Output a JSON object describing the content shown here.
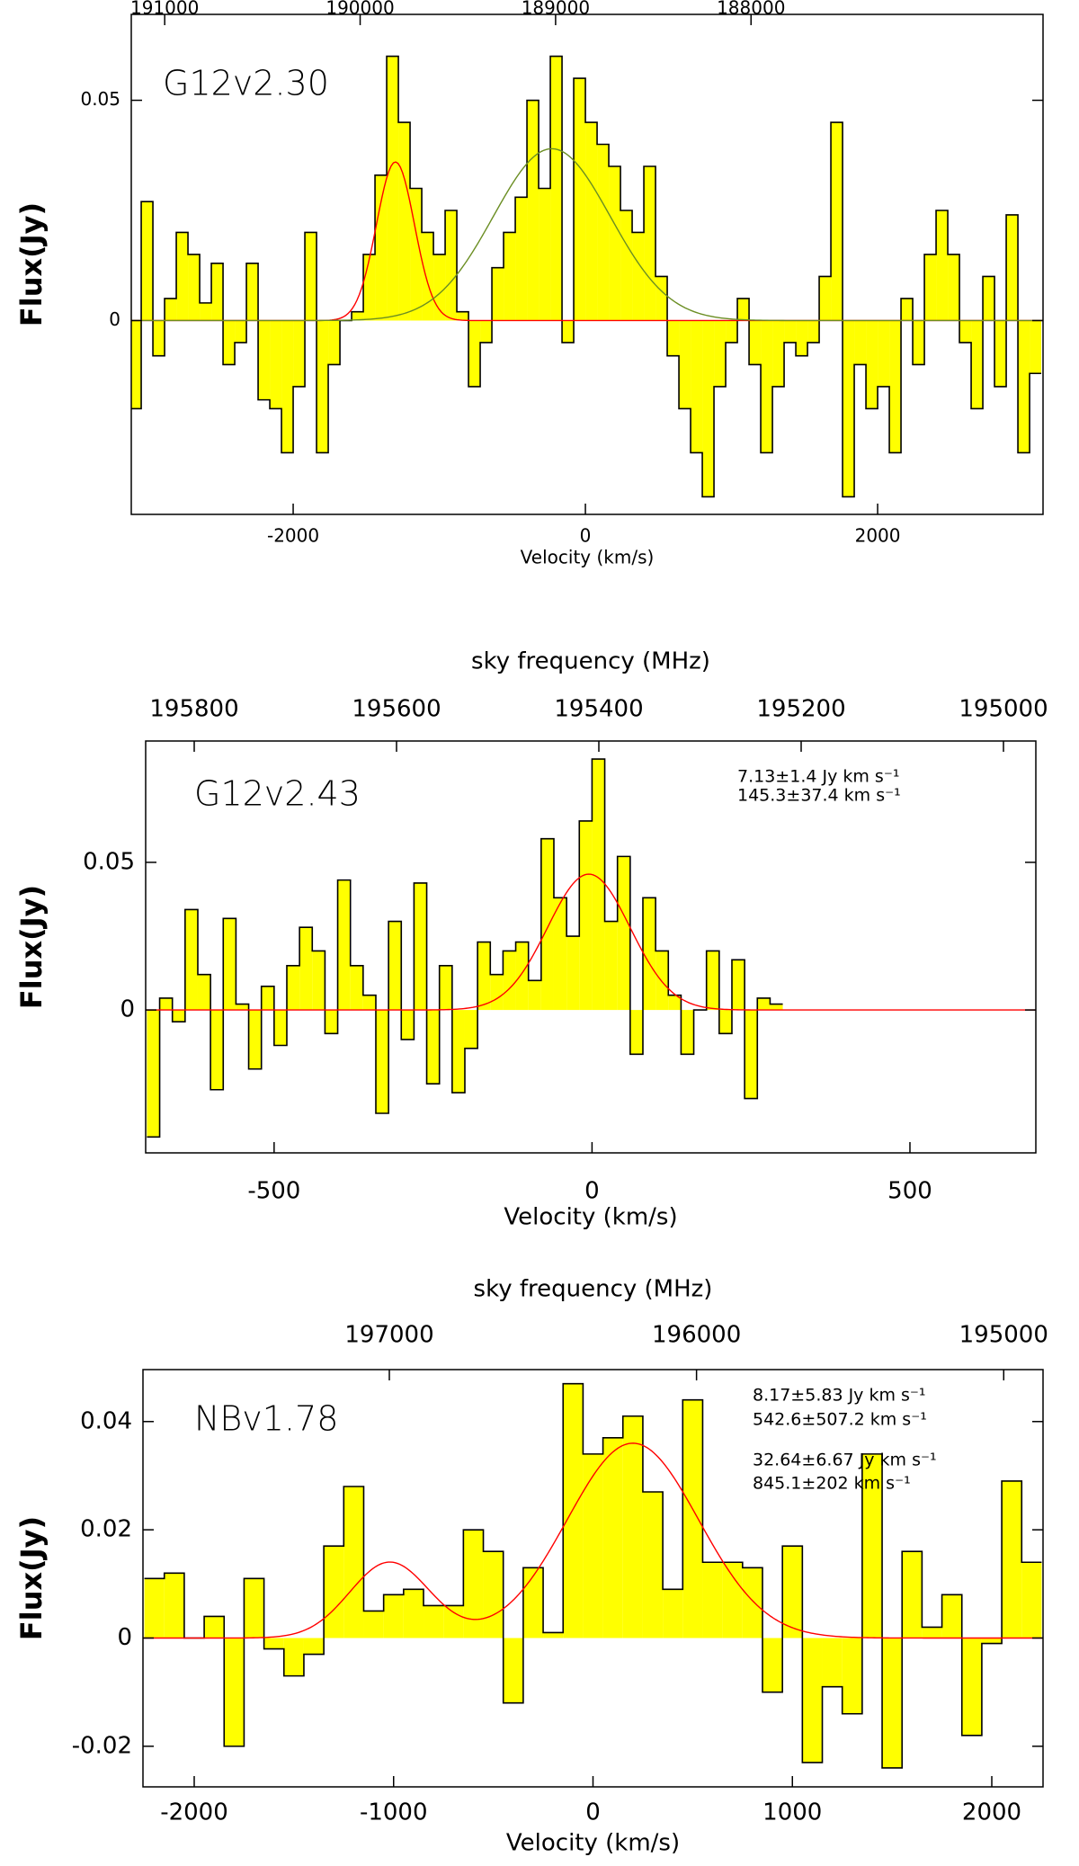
{
  "chart_data": [
    {
      "type": "step",
      "title": "G12v2.30",
      "xlabel": "Velocity (km/s)",
      "ylabel": "Flux(Jy)",
      "color": "#ffff00",
      "x": [
        -3080,
        -3000,
        -2920,
        -2840,
        -2760,
        -2680,
        -2600,
        -2520,
        -2440,
        -2360,
        -2280,
        -2200,
        -2120,
        -2040,
        -1960,
        -1880,
        -1800,
        -1720,
        -1640,
        -1560,
        -1480,
        -1400,
        -1320,
        -1240,
        -1160,
        -1080,
        -1000,
        -920,
        -840,
        -760,
        -680,
        -600,
        -520,
        -440,
        -360,
        -280,
        -200,
        -120,
        -40,
        40,
        120,
        200,
        280,
        360,
        440,
        520,
        600,
        680,
        760,
        840,
        920,
        1000,
        1080,
        1160,
        1240,
        1320,
        1400,
        1480,
        1560,
        1640,
        1720,
        1800,
        1880,
        1960,
        2040,
        2120,
        2200,
        2280,
        2360,
        2440,
        2520,
        2600,
        2680,
        2760,
        2840,
        2920,
        3000,
        3080
      ],
      "values": [
        -0.02,
        0.027,
        -0.008,
        0.005,
        0.02,
        0.015,
        0.004,
        0.013,
        -0.01,
        -0.005,
        0.013,
        -0.018,
        -0.02,
        -0.03,
        -0.015,
        0.02,
        -0.03,
        -0.01,
        0.0,
        0.002,
        0.015,
        0.033,
        0.06,
        0.045,
        0.03,
        0.02,
        0.015,
        0.025,
        0.002,
        -0.015,
        -0.005,
        0.012,
        0.02,
        0.028,
        0.05,
        0.03,
        0.06,
        -0.005,
        0.055,
        0.045,
        0.04,
        0.035,
        0.025,
        0.02,
        0.035,
        0.01,
        -0.008,
        -0.02,
        -0.03,
        -0.04,
        -0.015,
        -0.005,
        0.005,
        -0.01,
        -0.03,
        -0.015,
        -0.005,
        -0.008,
        -0.005,
        0.01,
        0.045,
        -0.04,
        -0.01,
        -0.02,
        -0.015,
        -0.03,
        0.005,
        -0.01,
        0.015,
        0.025,
        0.015,
        -0.005,
        -0.02,
        0.01,
        -0.015,
        0.024,
        -0.03,
        -0.012
      ],
      "fits": [
        {
          "color": "#ff0000",
          "components": [
            {
              "center": -1300,
              "amplitude": 0.036,
              "sigma": 130
            }
          ]
        },
        {
          "color": "#6b8e23",
          "components": [
            {
              "center": -230,
              "amplitude": 0.039,
              "sigma": 400
            }
          ]
        }
      ],
      "xlim": [
        -3108,
        3132
      ],
      "ylim": [
        -0.044,
        0.0695
      ],
      "xticks": [
        -2000,
        0,
        2000
      ],
      "yticks": [
        0,
        0.05
      ],
      "x2lim": [
        191171,
        186506
      ],
      "x2ticks": [
        191000,
        190000,
        189000,
        188000
      ]
    },
    {
      "type": "step",
      "title": "G12v2.43",
      "xlabel": "Velocity (km/s)",
      "ylabel": "Flux(Jy)",
      "x2label": "sky frequency (MHz)",
      "color": "#ffff00",
      "x": [
        -690,
        -670,
        -650,
        -630,
        -610,
        -590,
        -570,
        -550,
        -530,
        -510,
        -490,
        -470,
        -450,
        -430,
        -410,
        -390,
        -370,
        -350,
        -330,
        -310,
        -290,
        -270,
        -250,
        -230,
        -210,
        -190,
        -170,
        -150,
        -130,
        -110,
        -90,
        -70,
        -50,
        -30,
        -10,
        10,
        30,
        50,
        70,
        90,
        110,
        130,
        150,
        170,
        190,
        210,
        230,
        250,
        270,
        290
      ],
      "values": [
        -0.043,
        0.004,
        -0.004,
        0.034,
        0.012,
        -0.027,
        0.031,
        0.002,
        -0.02,
        0.008,
        -0.012,
        0.015,
        0.028,
        0.02,
        -0.008,
        0.044,
        0.015,
        0.005,
        -0.035,
        0.03,
        -0.01,
        0.043,
        -0.025,
        0.015,
        -0.028,
        -0.013,
        0.023,
        0.012,
        0.02,
        0.023,
        0.01,
        0.058,
        0.038,
        0.025,
        0.064,
        0.085,
        0.03,
        0.052,
        -0.015,
        0.038,
        0.02,
        0.005,
        -0.015,
        0.0,
        0.02,
        -0.008,
        0.017,
        -0.03,
        0.004,
        0.002
      ],
      "fits": [
        {
          "color": "#ff0000",
          "components": [
            {
              "center": -5,
              "amplitude": 0.046,
              "sigma": 65
            }
          ]
        }
      ],
      "annotations": [
        "7.13±1.4 Jy km s⁻¹",
        "145.3±37.4 km s⁻¹"
      ],
      "xlim": [
        -702,
        698
      ],
      "ylim": [
        -0.0484,
        0.0911
      ],
      "xticks": [
        -500,
        0,
        500
      ],
      "yticks": [
        0,
        0.05
      ],
      "x2lim": [
        195848,
        194968
      ],
      "x2ticks": [
        195800,
        195600,
        195400,
        195200,
        195000
      ]
    },
    {
      "type": "step",
      "title": "NBv1.78",
      "xlabel": "Velocity (km/s)",
      "ylabel": "Flux(Jy)",
      "x2label": "sky frequency (MHz)",
      "color": "#ffff00",
      "x": [
        -2200,
        -2100,
        -2000,
        -1900,
        -1800,
        -1700,
        -1600,
        -1500,
        -1400,
        -1300,
        -1200,
        -1100,
        -1000,
        -900,
        -800,
        -700,
        -600,
        -500,
        -400,
        -300,
        -200,
        -100,
        0,
        100,
        200,
        300,
        400,
        500,
        600,
        700,
        800,
        900,
        1000,
        1100,
        1200,
        1300,
        1400,
        1500,
        1600,
        1700,
        1800,
        1900,
        2000,
        2100,
        2200
      ],
      "values": [
        0.011,
        0.012,
        0.0,
        0.004,
        -0.02,
        0.011,
        -0.002,
        -0.007,
        -0.003,
        0.017,
        0.028,
        0.005,
        0.008,
        0.009,
        0.006,
        0.006,
        0.02,
        0.016,
        -0.012,
        0.013,
        0.001,
        0.047,
        0.034,
        0.037,
        0.041,
        0.027,
        0.009,
        0.044,
        0.014,
        0.014,
        0.013,
        -0.01,
        0.017,
        -0.023,
        -0.009,
        -0.014,
        0.034,
        -0.024,
        0.016,
        0.002,
        0.008,
        -0.018,
        -0.001,
        0.029,
        0.014
      ],
      "fits": [
        {
          "color": "#ff0000",
          "components": [
            {
              "center": -1020,
              "amplitude": 0.014,
              "sigma": 200
            },
            {
              "center": 200,
              "amplitude": 0.036,
              "sigma": 330
            }
          ]
        }
      ],
      "annotations": [
        "8.17±5.83 Jy km s⁻¹",
        "542.6±507.2 km s⁻¹",
        "32.64±6.67 Jy km s⁻¹",
        "845.1±202 km s⁻¹"
      ],
      "xlim": [
        -2257,
        2257
      ],
      "ylim": [
        -0.0275,
        0.0496
      ],
      "xticks": [
        -2000,
        -1000,
        0,
        1000,
        2000
      ],
      "yticks": [
        -0.02,
        0,
        0.02,
        0.04
      ],
      "x2lim": [
        197802,
        194872
      ],
      "x2ticks": [
        197000,
        196000,
        195000
      ]
    }
  ]
}
